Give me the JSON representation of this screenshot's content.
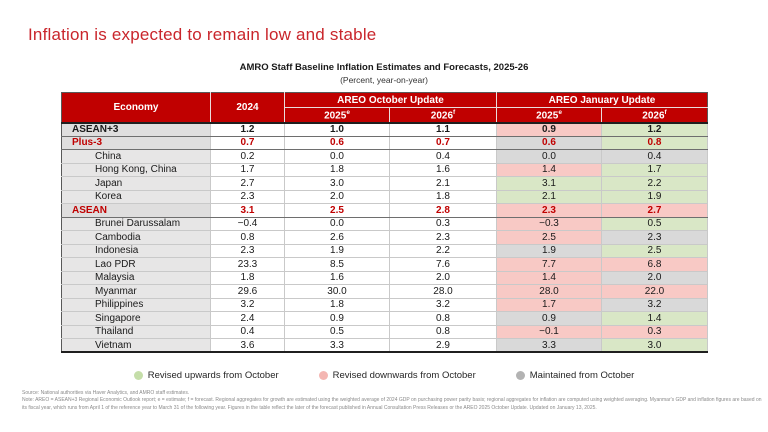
{
  "slide": {
    "title": "Inflation is expected to remain low and stable",
    "table_title": "AMRO Staff Baseline Inflation Estimates and Forecasts, 2025-26",
    "table_subtitle": "(Percent, year-on-year)"
  },
  "colors": {
    "title_red": "#c9252b",
    "header_red": "#c00000",
    "revised_up_bg": "#d9e7c6",
    "revised_down_bg": "#f8c9c5",
    "maintained_bg": "#d9d9d9"
  },
  "table": {
    "headers": {
      "economy": "Economy",
      "year2024": "2024",
      "october_group": "AREO October Update",
      "january_group": "AREO January Update",
      "sub2025": {
        "text": "2025",
        "sup": "e"
      },
      "sub2026": {
        "text": "2026",
        "sup": "f"
      }
    },
    "rows": [
      {
        "economy": "ASEAN+3",
        "style": "aggregate-black",
        "v2024": "1.2",
        "oct2025": "1.0",
        "oct2026": "1.1",
        "jan2025": "0.9",
        "jan2025_status": "down",
        "jan2026": "1.2",
        "jan2026_status": "up"
      },
      {
        "economy": "Plus-3",
        "style": "aggregate-red",
        "v2024": "0.7",
        "oct2025": "0.6",
        "oct2026": "0.7",
        "jan2025": "0.6",
        "jan2025_status": "same",
        "jan2026": "0.8",
        "jan2026_status": "up"
      },
      {
        "economy": "China",
        "style": "member",
        "v2024": "0.2",
        "oct2025": "0.0",
        "oct2026": "0.4",
        "jan2025": "0.0",
        "jan2025_status": "same",
        "jan2026": "0.4",
        "jan2026_status": "same"
      },
      {
        "economy": "Hong Kong, China",
        "style": "member",
        "v2024": "1.7",
        "oct2025": "1.8",
        "oct2026": "1.6",
        "jan2025": "1.4",
        "jan2025_status": "down",
        "jan2026": "1.7",
        "jan2026_status": "up"
      },
      {
        "economy": "Japan",
        "style": "member",
        "v2024": "2.7",
        "oct2025": "3.0",
        "oct2026": "2.1",
        "jan2025": "3.1",
        "jan2025_status": "up",
        "jan2026": "2.2",
        "jan2026_status": "up"
      },
      {
        "economy": "Korea",
        "style": "member",
        "v2024": "2.3",
        "oct2025": "2.0",
        "oct2026": "1.8",
        "jan2025": "2.1",
        "jan2025_status": "up",
        "jan2026": "1.9",
        "jan2026_status": "up"
      },
      {
        "economy": "ASEAN",
        "style": "aggregate-red",
        "v2024": "3.1",
        "oct2025": "2.5",
        "oct2026": "2.8",
        "jan2025": "2.3",
        "jan2025_status": "down",
        "jan2026": "2.7",
        "jan2026_status": "down"
      },
      {
        "economy": "Brunei Darussalam",
        "style": "member",
        "v2024": "−0.4",
        "oct2025": "0.0",
        "oct2026": "0.3",
        "jan2025": "−0.3",
        "jan2025_status": "down",
        "jan2026": "0.5",
        "jan2026_status": "up"
      },
      {
        "economy": "Cambodia",
        "style": "member",
        "v2024": "0.8",
        "oct2025": "2.6",
        "oct2026": "2.3",
        "jan2025": "2.5",
        "jan2025_status": "down",
        "jan2026": "2.3",
        "jan2026_status": "same"
      },
      {
        "economy": "Indonesia",
        "style": "member",
        "v2024": "2.3",
        "oct2025": "1.9",
        "oct2026": "2.2",
        "jan2025": "1.9",
        "jan2025_status": "same",
        "jan2026": "2.5",
        "jan2026_status": "up"
      },
      {
        "economy": "Lao PDR",
        "style": "member",
        "v2024": "23.3",
        "oct2025": "8.5",
        "oct2026": "7.6",
        "jan2025": "7.7",
        "jan2025_status": "down",
        "jan2026": "6.8",
        "jan2026_status": "down"
      },
      {
        "economy": "Malaysia",
        "style": "member",
        "v2024": "1.8",
        "oct2025": "1.6",
        "oct2026": "2.0",
        "jan2025": "1.4",
        "jan2025_status": "down",
        "jan2026": "2.0",
        "jan2026_status": "same"
      },
      {
        "economy": "Myanmar",
        "style": "member",
        "v2024": "29.6",
        "oct2025": "30.0",
        "oct2026": "28.0",
        "jan2025": "28.0",
        "jan2025_status": "down",
        "jan2026": "22.0",
        "jan2026_status": "down"
      },
      {
        "economy": "Philippines",
        "style": "member",
        "v2024": "3.2",
        "oct2025": "1.8",
        "oct2026": "3.2",
        "jan2025": "1.7",
        "jan2025_status": "down",
        "jan2026": "3.2",
        "jan2026_status": "same"
      },
      {
        "economy": "Singapore",
        "style": "member",
        "v2024": "2.4",
        "oct2025": "0.9",
        "oct2026": "0.8",
        "jan2025": "0.9",
        "jan2025_status": "same",
        "jan2026": "1.4",
        "jan2026_status": "up"
      },
      {
        "economy": "Thailand",
        "style": "member",
        "v2024": "0.4",
        "oct2025": "0.5",
        "oct2026": "0.8",
        "jan2025": "−0.1",
        "jan2025_status": "down",
        "jan2026": "0.3",
        "jan2026_status": "down"
      },
      {
        "economy": "Vietnam",
        "style": "member",
        "v2024": "3.6",
        "oct2025": "3.3",
        "oct2026": "2.9",
        "jan2025": "3.3",
        "jan2025_status": "same",
        "jan2026": "3.0",
        "jan2026_status": "up"
      }
    ]
  },
  "legend": [
    {
      "label": "Revised upwards from October",
      "color": "#c5dea9"
    },
    {
      "label": "Revised downwards from October",
      "color": "#f4b6b2"
    },
    {
      "label": "Maintained from October",
      "color": "#b3b3b3"
    }
  ],
  "footnotes": {
    "source": "Source: National authorities via Haver Analytics, and AMRO staff estimates.",
    "note": "Note: AREO = ASEAN+3 Regional Economic Outlook report; e = estimate; f = forecast. Regional aggregates for growth are estimated using the weighted average of 2024 GDP on purchasing power parity basis; regional aggregates for inflation are computed using weighted averaging. Myanmar's GDP and inflation figures are based on its fiscal year, which runs from April 1 of the reference year to March 31 of the following year. Figures in the table reflect the later of the forecast published in Annual Consultation Press Releases or the AREO 2025 October Update. Updated on January 13, 2025."
  }
}
